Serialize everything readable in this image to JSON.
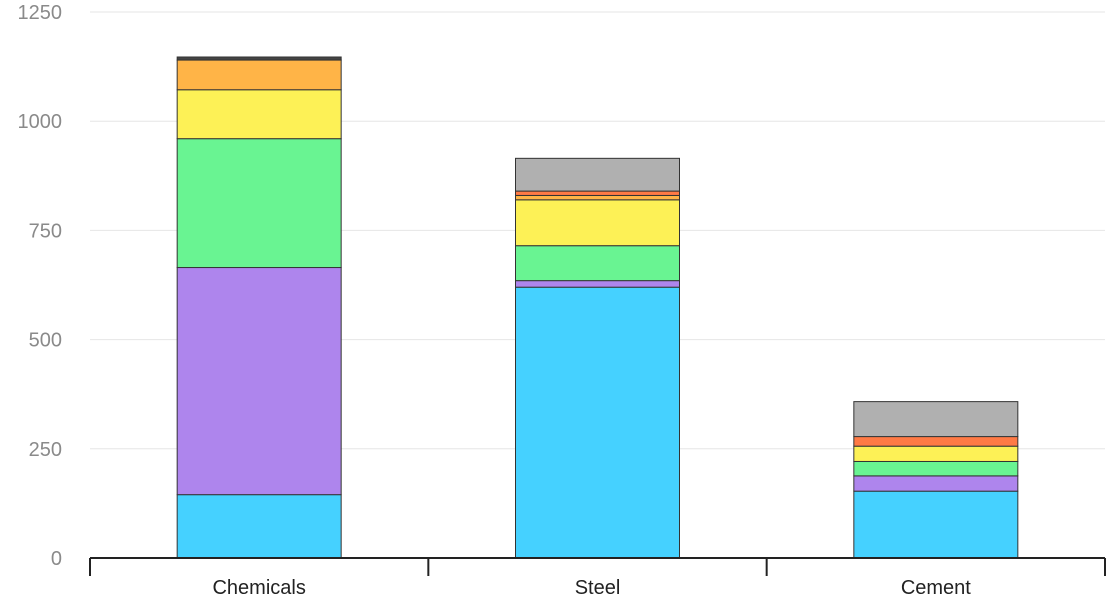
{
  "chart_data": {
    "type": "bar",
    "stacked": true,
    "title": "",
    "xlabel": "",
    "ylabel": "",
    "categories": [
      "Chemicals",
      "Steel",
      "Cement"
    ],
    "ylim": [
      0,
      1250
    ],
    "yticks": [
      0,
      250,
      500,
      750,
      1000,
      1250
    ],
    "grid": true,
    "legend": "none",
    "series": [
      {
        "color": "#45d1ff",
        "values": [
          145,
          620,
          153
        ]
      },
      {
        "color": "#ae85ed",
        "values": [
          520,
          15,
          35
        ]
      },
      {
        "color": "#69f492",
        "values": [
          295,
          80,
          33
        ]
      },
      {
        "color": "#fdf156",
        "values": [
          112,
          105,
          35
        ]
      },
      {
        "color": "#ffb447",
        "values": [
          68,
          10,
          0
        ]
      },
      {
        "color": "#ff7a45",
        "values": [
          0,
          10,
          22
        ]
      },
      {
        "color": "#444444",
        "values": [
          7,
          0,
          0
        ]
      },
      {
        "color": "#b0b0b0",
        "values": [
          0,
          75,
          80
        ]
      }
    ]
  }
}
